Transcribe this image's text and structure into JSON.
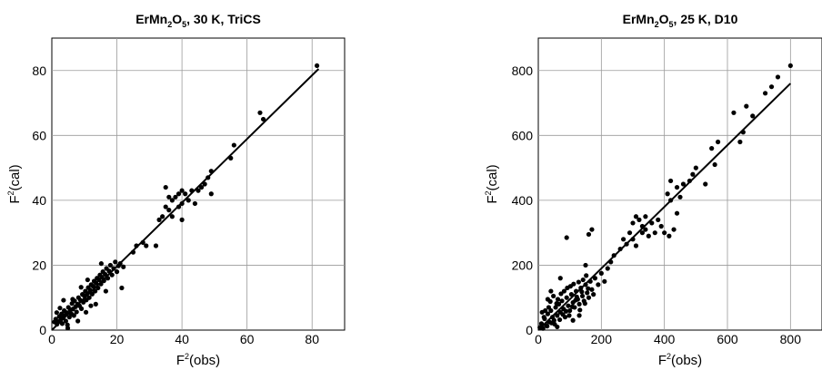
{
  "chart_data": [
    {
      "type": "scatter",
      "title": {
        "base": "ErMn",
        "sub1": "2",
        "mid": "O",
        "sub2": "5",
        "tail": ", 30 K, TriCS"
      },
      "xlabel": {
        "base": "F",
        "sup": "2",
        "tail": "(obs)"
      },
      "ylabel": {
        "base": "F",
        "sup": "2",
        "tail": "(cal)"
      },
      "xlim": [
        0,
        90
      ],
      "ylim": [
        0,
        90
      ],
      "xticks": [
        0,
        20,
        40,
        60,
        80
      ],
      "yticks": [
        0,
        20,
        40,
        60,
        80
      ],
      "grid": true,
      "fit_line": [
        [
          0,
          0
        ],
        [
          82,
          80.5
        ]
      ],
      "points": [
        [
          0.8,
          2.5
        ],
        [
          1.2,
          3.4
        ],
        [
          1.6,
          1.8
        ],
        [
          2.0,
          2.6
        ],
        [
          2.3,
          4.2
        ],
        [
          2.7,
          3.0
        ],
        [
          3.0,
          5.0
        ],
        [
          3.2,
          2.0
        ],
        [
          3.5,
          3.8
        ],
        [
          3.8,
          6.0
        ],
        [
          4.0,
          4.6
        ],
        [
          4.3,
          2.8
        ],
        [
          4.6,
          5.4
        ],
        [
          4.9,
          0.6
        ],
        [
          5.1,
          7.0
        ],
        [
          5.4,
          4.0
        ],
        [
          5.7,
          6.2
        ],
        [
          6.0,
          5.0
        ],
        [
          6.2,
          8.2
        ],
        [
          6.5,
          6.5
        ],
        [
          6.8,
          4.5
        ],
        [
          7.0,
          9.0
        ],
        [
          7.3,
          7.2
        ],
        [
          7.6,
          5.6
        ],
        [
          7.9,
          8.0
        ],
        [
          8.2,
          10.0
        ],
        [
          8.5,
          7.5
        ],
        [
          8.8,
          9.2
        ],
        [
          9.1,
          6.6
        ],
        [
          9.4,
          11.0
        ],
        [
          9.7,
          8.6
        ],
        [
          10.0,
          10.5
        ],
        [
          10.3,
          12.0
        ],
        [
          10.6,
          9.3
        ],
        [
          10.9,
          11.3
        ],
        [
          11.2,
          13.1
        ],
        [
          11.5,
          10.0
        ],
        [
          11.8,
          12.3
        ],
        [
          12.1,
          14.0
        ],
        [
          12.4,
          11.1
        ],
        [
          12.7,
          13.5
        ],
        [
          13.0,
          15.1
        ],
        [
          13.3,
          12.0
        ],
        [
          13.6,
          14.5
        ],
        [
          13.9,
          16.0
        ],
        [
          14.2,
          13.0
        ],
        [
          14.5,
          15.5
        ],
        [
          14.8,
          17.0
        ],
        [
          15.1,
          14.2
        ],
        [
          15.4,
          16.3
        ],
        [
          15.7,
          18.0
        ],
        [
          16.0,
          15.2
        ],
        [
          16.4,
          17.2
        ],
        [
          16.8,
          19.0
        ],
        [
          17.2,
          16.0
        ],
        [
          17.6,
          18.2
        ],
        [
          18.0,
          20.0
        ],
        [
          18.5,
          17.0
        ],
        [
          19.0,
          19.0
        ],
        [
          19.5,
          21.0
        ],
        [
          20.0,
          18.0
        ],
        [
          20.5,
          19.8
        ],
        [
          21.0,
          20.5
        ],
        [
          21.5,
          13.0
        ],
        [
          22.0,
          19.5
        ],
        [
          12.0,
          7.5
        ],
        [
          10.5,
          5.5
        ],
        [
          8.0,
          2.8
        ],
        [
          6.4,
          9.5
        ],
        [
          3.6,
          9.2
        ],
        [
          13.5,
          8.0
        ],
        [
          15.2,
          20.5
        ],
        [
          16.6,
          12.0
        ],
        [
          11.0,
          15.5
        ],
        [
          9.0,
          13.2
        ],
        [
          4.8,
          1.6
        ],
        [
          2.5,
          6.8
        ],
        [
          1.5,
          5.4
        ],
        [
          25,
          24
        ],
        [
          26,
          26
        ],
        [
          28,
          27
        ],
        [
          29,
          26
        ],
        [
          32,
          26
        ],
        [
          33,
          34
        ],
        [
          34,
          35
        ],
        [
          35,
          38
        ],
        [
          35,
          44
        ],
        [
          36,
          37
        ],
        [
          36,
          41
        ],
        [
          37,
          35
        ],
        [
          37,
          40
        ],
        [
          38,
          41
        ],
        [
          39,
          38
        ],
        [
          39,
          42
        ],
        [
          40,
          34
        ],
        [
          40,
          39
        ],
        [
          40,
          43
        ],
        [
          41,
          42
        ],
        [
          42,
          40
        ],
        [
          43,
          43
        ],
        [
          44,
          39
        ],
        [
          45,
          43
        ],
        [
          46,
          44
        ],
        [
          47,
          45
        ],
        [
          48,
          47
        ],
        [
          49,
          42
        ],
        [
          49,
          49
        ],
        [
          55,
          53
        ],
        [
          56,
          57
        ],
        [
          64,
          67
        ],
        [
          65,
          65
        ],
        [
          81.5,
          81.5
        ]
      ]
    },
    {
      "type": "scatter",
      "title": {
        "base": "ErMn",
        "sub1": "2",
        "mid": "O",
        "sub2": "5",
        "tail": ", 25 K, D10"
      },
      "xlabel": {
        "base": "F",
        "sup": "2",
        "tail": "(obs)"
      },
      "ylabel": {
        "base": "F",
        "sup": "2",
        "tail": "(cal)"
      },
      "xlim": [
        0,
        900
      ],
      "ylim": [
        0,
        900
      ],
      "xticks": [
        0,
        200,
        400,
        600,
        800
      ],
      "yticks": [
        0,
        200,
        400,
        600,
        800
      ],
      "grid": true,
      "fit_line": [
        [
          0,
          0
        ],
        [
          800,
          760
        ]
      ],
      "points": [
        [
          5,
          8
        ],
        [
          10,
          20
        ],
        [
          15,
          5
        ],
        [
          20,
          35
        ],
        [
          25,
          15
        ],
        [
          30,
          50
        ],
        [
          35,
          25
        ],
        [
          40,
          60
        ],
        [
          45,
          40
        ],
        [
          50,
          30
        ],
        [
          55,
          70
        ],
        [
          60,
          45
        ],
        [
          65,
          80
        ],
        [
          70,
          55
        ],
        [
          75,
          90
        ],
        [
          80,
          65
        ],
        [
          85,
          40
        ],
        [
          90,
          100
        ],
        [
          95,
          75
        ],
        [
          100,
          60
        ],
        [
          105,
          110
        ],
        [
          110,
          85
        ],
        [
          115,
          70
        ],
        [
          120,
          120
        ],
        [
          125,
          95
        ],
        [
          130,
          80
        ],
        [
          135,
          130
        ],
        [
          140,
          105
        ],
        [
          145,
          90
        ],
        [
          150,
          140
        ],
        [
          155,
          115
        ],
        [
          160,
          100
        ],
        [
          165,
          150
        ],
        [
          170,
          125
        ],
        [
          175,
          110
        ],
        [
          180,
          160
        ],
        [
          190,
          140
        ],
        [
          200,
          175
        ],
        [
          210,
          150
        ],
        [
          220,
          190
        ],
        [
          40,
          120
        ],
        [
          70,
          160
        ],
        [
          90,
          285
        ],
        [
          160,
          295
        ],
        [
          170,
          310
        ],
        [
          150,
          200
        ],
        [
          60,
          10
        ],
        [
          110,
          30
        ],
        [
          130,
          45
        ],
        [
          30,
          95
        ],
        [
          230,
          210
        ],
        [
          240,
          230
        ],
        [
          260,
          250
        ],
        [
          270,
          280
        ],
        [
          280,
          265
        ],
        [
          290,
          300
        ],
        [
          300,
          280
        ],
        [
          300,
          330
        ],
        [
          310,
          260
        ],
        [
          310,
          350
        ],
        [
          320,
          340
        ],
        [
          330,
          300
        ],
        [
          330,
          320
        ],
        [
          340,
          310
        ],
        [
          340,
          350
        ],
        [
          350,
          290
        ],
        [
          360,
          330
        ],
        [
          370,
          300
        ],
        [
          380,
          340
        ],
        [
          390,
          320
        ],
        [
          400,
          300
        ],
        [
          410,
          420
        ],
        [
          415,
          290
        ],
        [
          420,
          400
        ],
        [
          420,
          460
        ],
        [
          430,
          310
        ],
        [
          440,
          360
        ],
        [
          440,
          440
        ],
        [
          450,
          410
        ],
        [
          460,
          450
        ],
        [
          480,
          460
        ],
        [
          490,
          480
        ],
        [
          500,
          500
        ],
        [
          530,
          450
        ],
        [
          550,
          560
        ],
        [
          560,
          510
        ],
        [
          570,
          580
        ],
        [
          620,
          670
        ],
        [
          640,
          580
        ],
        [
          650,
          610
        ],
        [
          660,
          690
        ],
        [
          680,
          660
        ],
        [
          720,
          730
        ],
        [
          740,
          750
        ],
        [
          760,
          780
        ],
        [
          800,
          815
        ],
        [
          12,
          55
        ],
        [
          18,
          40
        ],
        [
          22,
          60
        ],
        [
          28,
          12
        ],
        [
          33,
          70
        ],
        [
          38,
          88
        ],
        [
          42,
          22
        ],
        [
          48,
          105
        ],
        [
          52,
          18
        ],
        [
          58,
          82
        ],
        [
          62,
          95
        ],
        [
          68,
          32
        ],
        [
          72,
          112
        ],
        [
          78,
          48
        ],
        [
          82,
          120
        ],
        [
          88,
          58
        ],
        [
          92,
          130
        ],
        [
          98,
          45
        ],
        [
          102,
          135
        ],
        [
          108,
          72
        ],
        [
          112,
          142
        ],
        [
          118,
          92
        ],
        [
          122,
          102
        ],
        [
          128,
          148
        ],
        [
          132,
          62
        ],
        [
          138,
          118
        ],
        [
          142,
          155
        ],
        [
          148,
          82
        ],
        [
          152,
          168
        ],
        [
          158,
          128
        ]
      ]
    }
  ]
}
